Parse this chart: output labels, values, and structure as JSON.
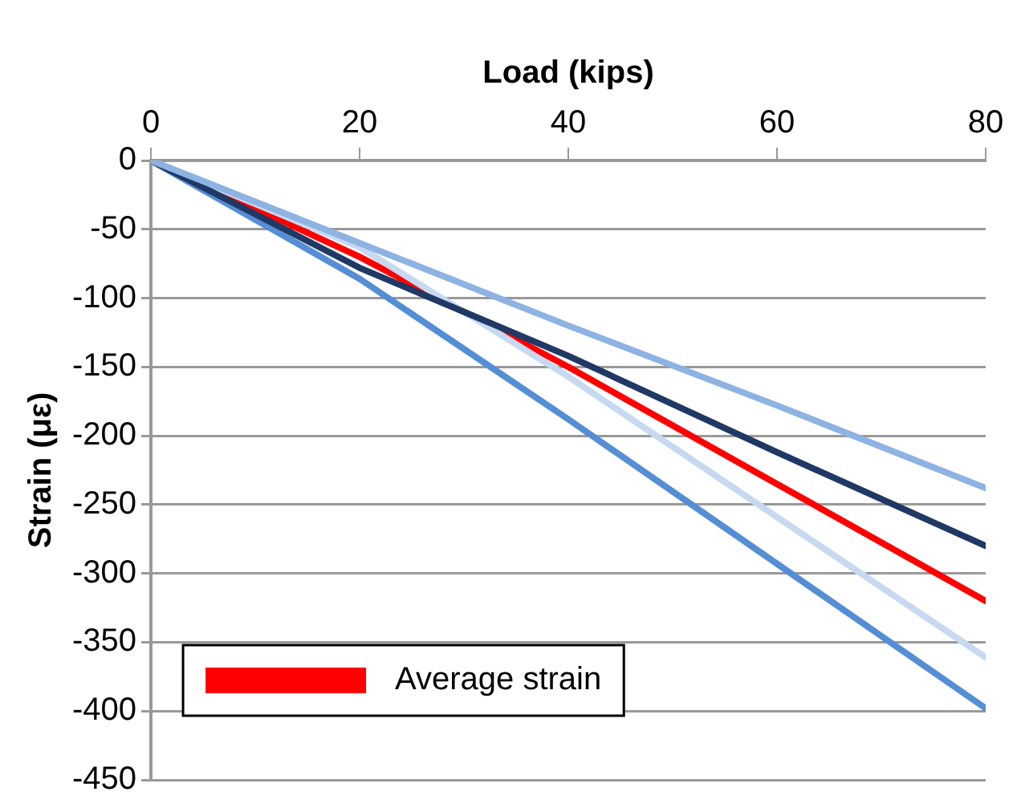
{
  "chart_data": {
    "type": "line",
    "xlabel": "Load (kips)",
    "ylabel": "Strain (με)",
    "x": [
      0,
      20,
      40,
      60,
      80
    ],
    "series": [
      {
        "color": "#8db3e2",
        "values": [
          0,
          -60,
          -120,
          -178,
          -238
        ]
      },
      {
        "color": "#1f3864",
        "values": [
          0,
          -78,
          -142,
          -212,
          -280
        ]
      },
      {
        "color": "#c6d9f1",
        "values": [
          0,
          -63,
          -157,
          -259,
          -361
        ]
      },
      {
        "color": "#558ed5",
        "values": [
          0,
          -86,
          -188,
          -293,
          -398
        ]
      },
      {
        "name": "Average strain",
        "color": "#ff0000",
        "values": [
          0,
          -70,
          -150,
          -235,
          -320
        ]
      }
    ],
    "xlim": [
      0,
      80
    ],
    "xticks": [
      0,
      20,
      40,
      60,
      80
    ],
    "ylim": [
      -450,
      0
    ],
    "yticks": [
      0,
      -50,
      -100,
      -150,
      -200,
      -250,
      -300,
      -350,
      -400,
      -450
    ],
    "grid": "y",
    "legend": "bottom left",
    "marker": "none",
    "line_style": "solid"
  }
}
